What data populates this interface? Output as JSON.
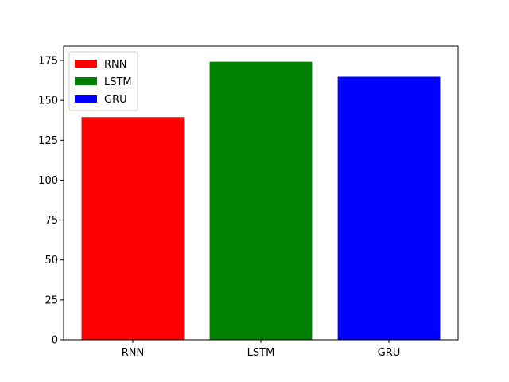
{
  "chart_data": {
    "type": "bar",
    "categories": [
      "RNN",
      "LSTM",
      "GRU"
    ],
    "values": [
      139.5,
      174.2,
      164.8
    ],
    "colors": [
      "#ff0000",
      "#008000",
      "#0000ff"
    ],
    "ylim": [
      0,
      184
    ],
    "yticks": [
      0,
      25,
      50,
      75,
      100,
      125,
      150,
      175
    ],
    "legend": {
      "placement": "top-left",
      "entries": [
        {
          "label": "RNN",
          "color": "#ff0000"
        },
        {
          "label": "LSTM",
          "color": "#008000"
        },
        {
          "label": "GRU",
          "color": "#0000ff"
        }
      ]
    },
    "grid": false
  }
}
